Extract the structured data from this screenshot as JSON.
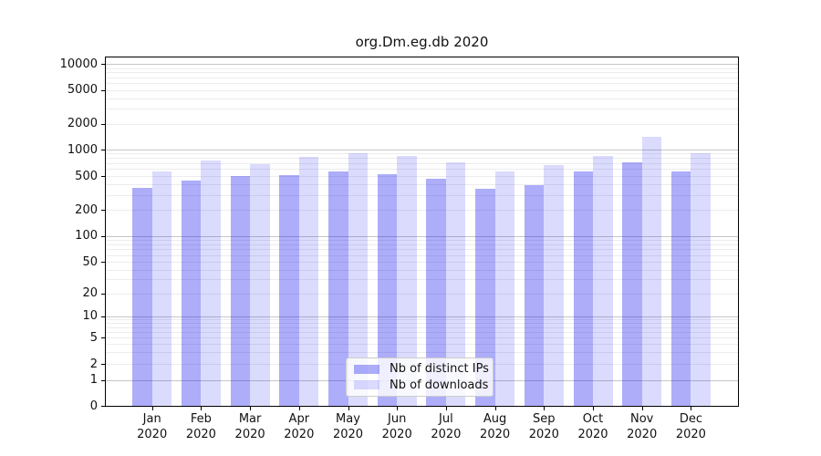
{
  "chart_data": {
    "type": "bar",
    "title": "org.Dm.eg.db 2020",
    "year_label": "2020",
    "categories": [
      "Jan",
      "Feb",
      "Mar",
      "Apr",
      "May",
      "Jun",
      "Jul",
      "Aug",
      "Sep",
      "Oct",
      "Nov",
      "Dec"
    ],
    "series": [
      {
        "name": "Nb of distinct IPs",
        "color": "rgba(15,15,240,0.34)",
        "values": [
          365,
          445,
          500,
          515,
          570,
          530,
          465,
          350,
          395,
          565,
          715,
          560
        ]
      },
      {
        "name": "Nb of downloads",
        "color": "rgba(15,15,240,0.15)",
        "values": [
          565,
          750,
          690,
          820,
          920,
          850,
          720,
          565,
          670,
          840,
          1410,
          915
        ]
      }
    ],
    "yticks": [
      0,
      1,
      2,
      5,
      10,
      20,
      50,
      100,
      200,
      500,
      1000,
      2000,
      5000,
      10000
    ],
    "yscale": "symlog",
    "ylim": [
      0,
      13000
    ],
    "xlabel": "",
    "ylabel": "",
    "grid": true,
    "legend_position": "bottom-center",
    "colors": {
      "major_grid": "#c6c6c6",
      "minor_grid": "#ececec",
      "spine": "#000000",
      "bar_dark_hex": "#a8a8f5",
      "bar_light_hex": "#dbdbfa"
    }
  }
}
